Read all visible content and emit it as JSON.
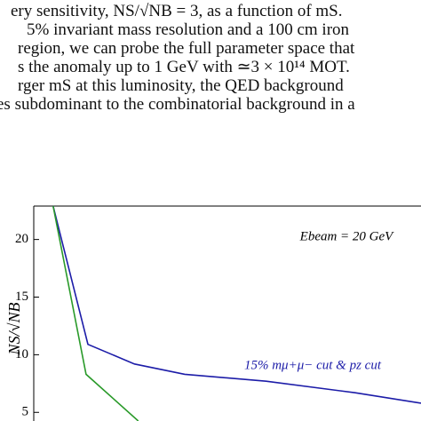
{
  "text_lines": [
    "ery sensitivity, NS/√NB = 3, as a function of mS.",
    "5% invariant mass resolution and a 100 cm iron",
    "region, we can probe the full parameter space that",
    "s the anomaly up to 1 GeV with ≃3 × 10¹⁴ MOT.",
    "rger mS at this luminosity, the QED background",
    "es subdominant to the combinatorial background in a"
  ],
  "chart_data": {
    "type": "line",
    "ylabel": "NS/√NB",
    "annotations": [
      "Ebeam = 20 GeV",
      "15% mμ+μ− cut & pz cut"
    ],
    "xlim": [
      0,
      1
    ],
    "ylim": [
      4.25,
      22.9
    ],
    "yticks": [
      5,
      10,
      15,
      20
    ],
    "series": [
      {
        "color": "#1c1ca8",
        "x": [
          0.05,
          0.14,
          0.26,
          0.39,
          0.6,
          0.83,
          1.0
        ],
        "values": [
          22.9,
          10.9,
          9.2,
          8.3,
          7.7,
          6.7,
          5.8
        ]
      },
      {
        "color": "#2a9a2a",
        "x": [
          0.05,
          0.135,
          0.27
        ],
        "values": [
          22.9,
          8.3,
          4.25
        ]
      }
    ]
  }
}
